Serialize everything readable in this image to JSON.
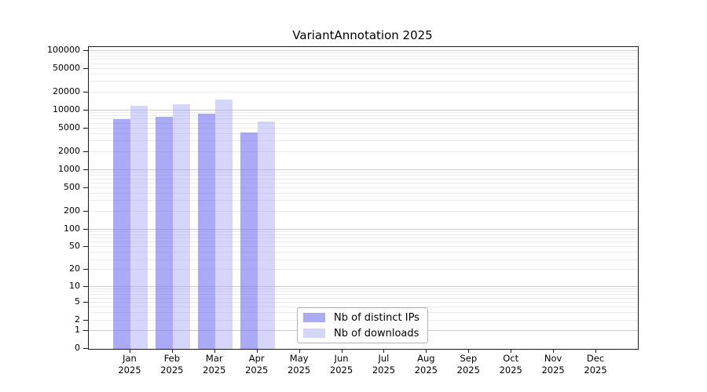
{
  "chart_data": {
    "type": "bar",
    "title": "VariantAnnotation 2025",
    "categories": [
      "Jan",
      "Feb",
      "Mar",
      "Apr",
      "May",
      "Jun",
      "Jul",
      "Aug",
      "Sep",
      "Oct",
      "Nov",
      "Dec"
    ],
    "category_year": "2025",
    "series": [
      {
        "name": "Nb of distinct IPs",
        "color": "rgba(118,118,240,0.62)",
        "values": [
          7000,
          7700,
          8800,
          4200,
          null,
          null,
          null,
          null,
          null,
          null,
          null,
          null
        ]
      },
      {
        "name": "Nb of downloads",
        "color": "rgba(158,158,242,0.42)",
        "values": [
          11900,
          12800,
          15100,
          6500,
          null,
          null,
          null,
          null,
          null,
          null,
          null,
          null
        ]
      }
    ],
    "yticks": [
      0,
      1,
      2,
      5,
      10,
      20,
      50,
      100,
      200,
      500,
      1000,
      2000,
      5000,
      10000,
      20000,
      50000,
      100000
    ],
    "ylabel_format": "plain-integer",
    "scale": "log10(x+1)",
    "ymax": 115000,
    "grid": "horizontal",
    "grid_major_color": "#cccccc",
    "grid_minor_color": "#ebebeb",
    "legend_position": "bottom-center",
    "legend_border_color": "#b3b3b3",
    "xlabel": "",
    "ylabel": ""
  }
}
